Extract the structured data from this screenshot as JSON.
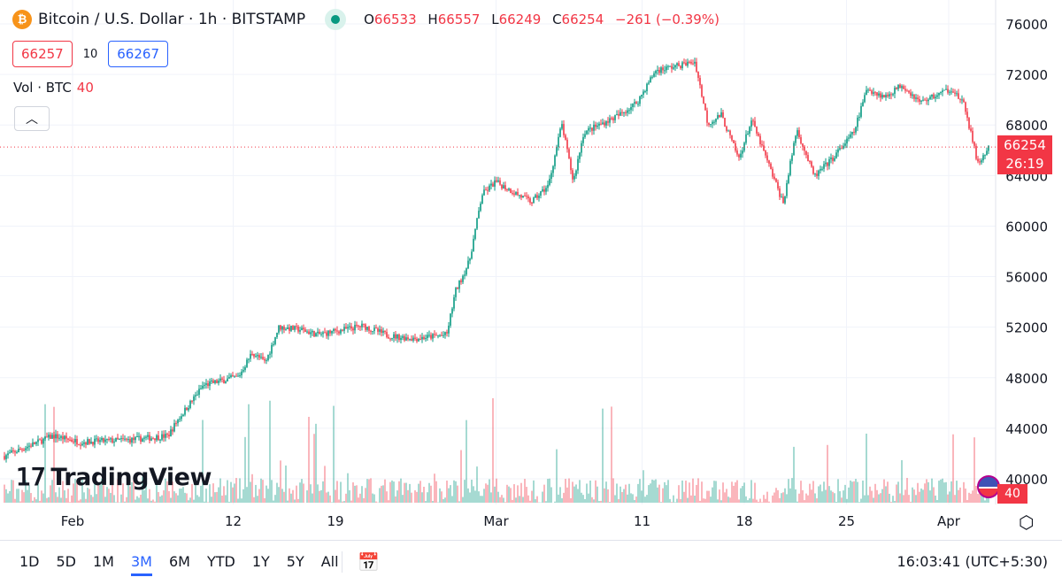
{
  "header": {
    "symbol_title": "Bitcoin / U.S. Dollar · 1h · BITSTAMP",
    "coin_icon": "bitcoin-icon",
    "market_status": "open",
    "ohlc": {
      "o_label": "O",
      "o": "66533",
      "h_label": "H",
      "h": "66557",
      "l_label": "L",
      "l": "66249",
      "c_label": "C",
      "c": "66254",
      "change": "−261 (−0.39%)"
    },
    "sell_price": "66257",
    "spread": "10",
    "buy_price": "66267",
    "volume_label": "Vol · BTC",
    "volume_value": "40"
  },
  "price_axis": {
    "current_price": "66254",
    "countdown": "26:19",
    "volume_badge": "40"
  },
  "logo": "TradingView",
  "bottom_bar": {
    "ranges": [
      "1D",
      "5D",
      "1M",
      "3M",
      "6M",
      "YTD",
      "1Y",
      "5Y",
      "All"
    ],
    "active_range": "3M",
    "time": "16:03:41 (UTC+5:30)"
  },
  "colors": {
    "up": "#089981",
    "down": "#f23645",
    "accent": "#2962ff"
  },
  "chart_data": {
    "type": "candlestick",
    "interval": "1h",
    "ylim": [
      38000,
      77000
    ],
    "y_ticks": [
      40000,
      44000,
      48000,
      52000,
      56000,
      60000,
      64000,
      68000,
      72000,
      76000
    ],
    "x_ticks": [
      {
        "label": "Feb",
        "date": "2024-02-01"
      },
      {
        "label": "12",
        "date": "2024-02-12"
      },
      {
        "label": "19",
        "date": "2024-02-19"
      },
      {
        "label": "Mar",
        "date": "2024-03-01"
      },
      {
        "label": "11",
        "date": "2024-03-11"
      },
      {
        "label": "18",
        "date": "2024-03-18"
      },
      {
        "label": "25",
        "date": "2024-03-25"
      },
      {
        "label": "Apr",
        "date": "2024-04-01"
      }
    ],
    "grid": true,
    "last_price": 66254,
    "price_path": [
      [
        "2024-01-27T08:00",
        41800
      ],
      [
        "2024-01-30T16:00",
        43400
      ],
      [
        "2024-02-01T12:00",
        42900
      ],
      [
        "2024-02-05T03:00",
        43100
      ],
      [
        "2024-02-07T13:00",
        43400
      ],
      [
        "2024-02-08T04:00",
        44600
      ],
      [
        "2024-02-09T23:00",
        47400
      ],
      [
        "2024-02-12T09:00",
        48100
      ],
      [
        "2024-02-13T07:00",
        50000
      ],
      [
        "2024-02-14T05:00",
        49200
      ],
      [
        "2024-02-15T03:00",
        52000
      ],
      [
        "2024-02-16T15:00",
        51800
      ],
      [
        "2024-02-17T19:00",
        51400
      ],
      [
        "2024-02-20T21:00",
        52100
      ],
      [
        "2024-02-22T17:00",
        51300
      ],
      [
        "2024-02-24T12:00",
        51100
      ],
      [
        "2024-02-26T15:00",
        51400
      ],
      [
        "2024-02-27T05:00",
        54800
      ],
      [
        "2024-02-28T04:00",
        57200
      ],
      [
        "2024-02-29T01:00",
        62500
      ],
      [
        "2024-02-29T23:00",
        63500
      ],
      [
        "2024-03-03T10:00",
        61900
      ],
      [
        "2024-03-04T14:00",
        63200
      ],
      [
        "2024-03-05T12:00",
        68100
      ],
      [
        "2024-03-06T07:00",
        63500
      ],
      [
        "2024-03-07T00:00",
        67400
      ],
      [
        "2024-03-09T11:00",
        68800
      ],
      [
        "2024-03-10T16:00",
        69800
      ],
      [
        "2024-03-11T22:00",
        72300
      ],
      [
        "2024-03-13T02:00",
        72600
      ],
      [
        "2024-03-14T15:00",
        73000
      ],
      [
        "2024-03-15T12:00",
        68100
      ],
      [
        "2024-03-16T10:00",
        68800
      ],
      [
        "2024-03-17T15:00",
        65300
      ],
      [
        "2024-03-18T12:00",
        68400
      ],
      [
        "2024-03-19T18:00",
        64600
      ],
      [
        "2024-03-20T16:00",
        61800
      ],
      [
        "2024-03-21T14:00",
        67700
      ],
      [
        "2024-03-22T19:00",
        63900
      ],
      [
        "2024-03-24T00:00",
        65300
      ],
      [
        "2024-03-25T12:00",
        67400
      ],
      [
        "2024-03-26T10:00",
        70900
      ],
      [
        "2024-03-27T15:00",
        70200
      ],
      [
        "2024-03-28T19:00",
        71200
      ],
      [
        "2024-03-30T01:00",
        69800
      ],
      [
        "2024-04-01T05:00",
        70900
      ],
      [
        "2024-04-02T02:00",
        69500
      ],
      [
        "2024-04-03T00:00",
        64900
      ],
      [
        "2024-04-03T19:00",
        66254
      ]
    ]
  }
}
